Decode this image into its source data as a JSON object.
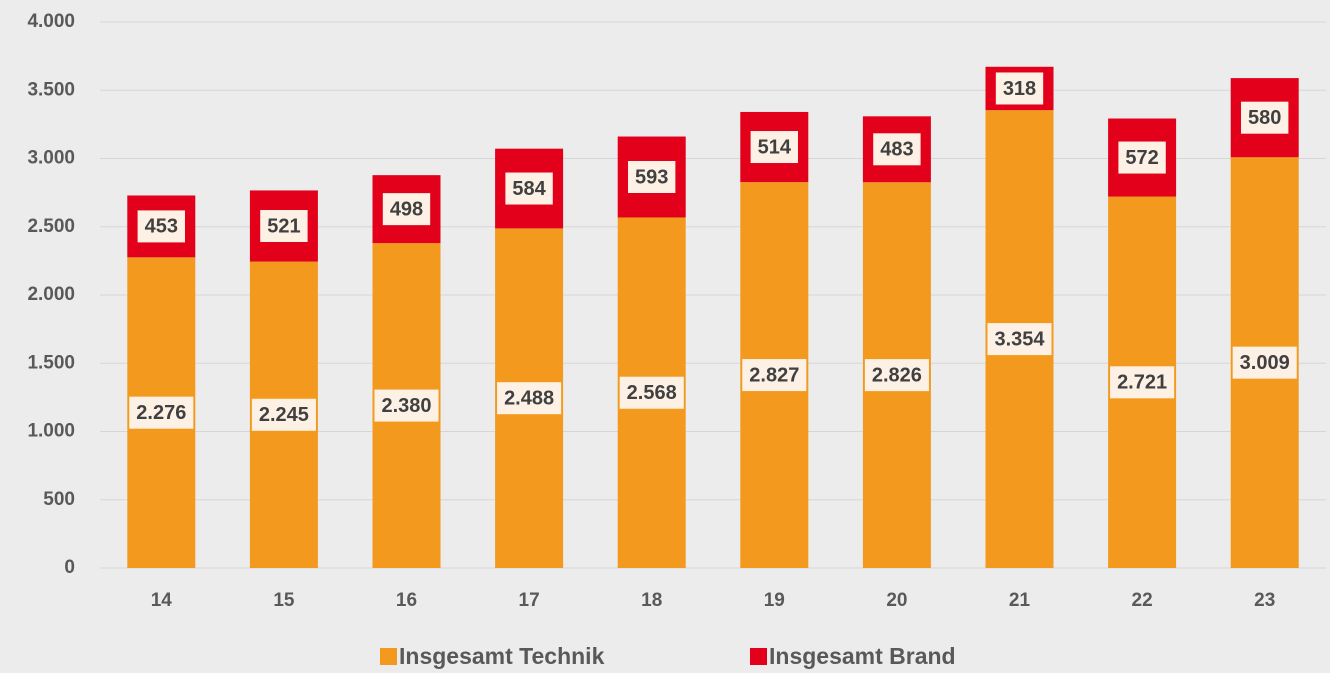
{
  "chart_data": {
    "type": "stacked_bar",
    "categories": [
      "14",
      "15",
      "16",
      "17",
      "18",
      "19",
      "20",
      "21",
      "22",
      "23"
    ],
    "series": [
      {
        "name": "Insgesamt Technik",
        "color": "#f39a1e",
        "values": [
          2276,
          2245,
          2380,
          2488,
          2568,
          2827,
          2826,
          3354,
          2721,
          3009
        ],
        "value_labels": [
          "2.276",
          "2.245",
          "2.380",
          "2.488",
          "2.568",
          "2.827",
          "2.826",
          "3.354",
          "2.721",
          "3.009"
        ]
      },
      {
        "name": "Insgesamt Brand",
        "color": "#e2001a",
        "values": [
          453,
          521,
          498,
          584,
          593,
          514,
          483,
          318,
          572,
          580
        ]
      }
    ],
    "ylim": [
      0,
      4000
    ],
    "yticks": [
      0,
      500,
      {
        "value": 1000,
        "label": "1.000"
      },
      {
        "value": 1500,
        "label": "1.500"
      },
      {
        "value": 2000,
        "label": "2.000"
      },
      {
        "value": 2500,
        "label": "2.500"
      },
      {
        "value": 3000,
        "label": "3.000"
      },
      {
        "value": 3500,
        "label": "3.500"
      },
      {
        "value": 4000,
        "label": "4.000"
      }
    ],
    "grid": true,
    "legend": "bottom"
  }
}
